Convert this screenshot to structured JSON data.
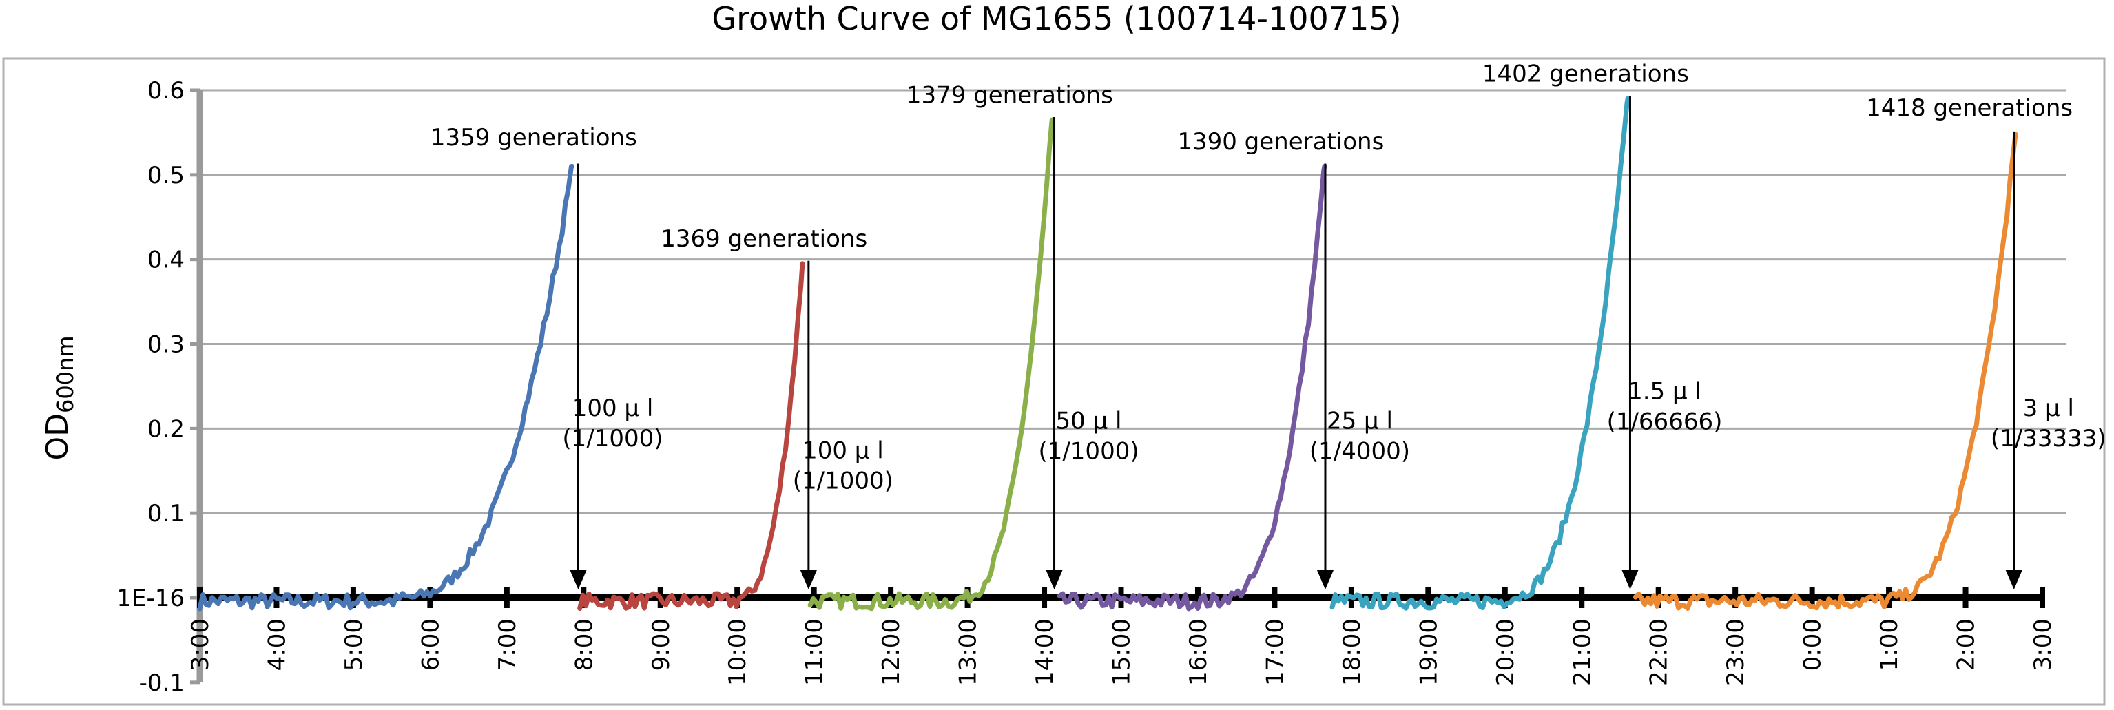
{
  "chart_data": {
    "type": "line",
    "title": "Growth Curve of MG1655 (100714-100715)",
    "ylabel": {
      "main": "OD",
      "sub": "600nm"
    },
    "ylim": [
      -0.1,
      0.6
    ],
    "yticks": [
      {
        "v": 0.6,
        "label": "0.6"
      },
      {
        "v": 0.5,
        "label": "0.5"
      },
      {
        "v": 0.4,
        "label": "0.4"
      },
      {
        "v": 0.3,
        "label": "0.3"
      },
      {
        "v": 0.2,
        "label": "0.2"
      },
      {
        "v": 0.1,
        "label": "0.1"
      },
      {
        "v": 0.0,
        "label": "1E-16"
      },
      {
        "v": -0.1,
        "label": "-0.1"
      }
    ],
    "x_range_hours": [
      3,
      27
    ],
    "x_ticks": [
      "3:00",
      "4:00",
      "5:00",
      "6:00",
      "7:00",
      "8:00",
      "9:00",
      "10:00",
      "11:00",
      "12:00",
      "13:00",
      "14:00",
      "15:00",
      "16:00",
      "17:00",
      "18:00",
      "19:00",
      "20:00",
      "21:00",
      "22:00",
      "23:00",
      "0:00",
      "1:00",
      "2:00",
      "3:00"
    ],
    "grid": true,
    "series": [
      {
        "color": "#4a77b4",
        "start": 3.0,
        "rise": 5.6,
        "peak_t": 7.85,
        "peak": 0.51
      },
      {
        "color": "#b8453f",
        "start": 7.95,
        "rise": 10.0,
        "peak_t": 10.85,
        "peak": 0.395
      },
      {
        "color": "#8bb04a",
        "start": 10.95,
        "rise": 12.9,
        "peak_t": 14.1,
        "peak": 0.565
      },
      {
        "color": "#7459a1",
        "start": 14.2,
        "rise": 16.3,
        "peak_t": 17.65,
        "peak": 0.51
      },
      {
        "color": "#3aa3bf",
        "start": 17.75,
        "rise": 20.0,
        "peak_t": 21.6,
        "peak": 0.59
      },
      {
        "color": "#ec8a33",
        "start": 21.7,
        "rise": 25.0,
        "peak_t": 26.65,
        "peak": 0.548
      }
    ],
    "annotations": [
      {
        "gen": "1359 generations",
        "gen_t": 7.35,
        "gen_y": 0.535,
        "arrow_t": 7.93,
        "vol": "100 μ l",
        "dil": "(1/1000)",
        "vol_t": 7.93,
        "vol_y": 0.215
      },
      {
        "gen": "1369 generations",
        "gen_t": 10.35,
        "gen_y": 0.415,
        "arrow_t": 10.93,
        "vol": "100 μ l",
        "dil": "(1/1000)",
        "vol_t": 10.93,
        "vol_y": 0.165
      },
      {
        "gen": "1379 generations",
        "gen_t": 13.55,
        "gen_y": 0.585,
        "arrow_t": 14.13,
        "vol": "50 μ l",
        "dil": "(1/1000)",
        "vol_t": 14.13,
        "vol_y": 0.2
      },
      {
        "gen": "1390 generations",
        "gen_t": 17.08,
        "gen_y": 0.53,
        "arrow_t": 17.66,
        "vol": "25 μ l",
        "dil": "(1/4000)",
        "vol_t": 17.66,
        "vol_y": 0.2
      },
      {
        "gen": "1402 generations",
        "gen_t": 21.05,
        "gen_y": 0.61,
        "arrow_t": 21.63,
        "vol": "1.5 μ l",
        "dil": "(1/66666)",
        "vol_t": 21.63,
        "vol_y": 0.235
      },
      {
        "gen": "1418 generations",
        "gen_t": 26.05,
        "gen_y": 0.57,
        "arrow_t": 26.63,
        "vol": "3 μ l",
        "dil": "(1/33333)",
        "vol_t": 26.63,
        "vol_y": 0.215
      }
    ]
  }
}
